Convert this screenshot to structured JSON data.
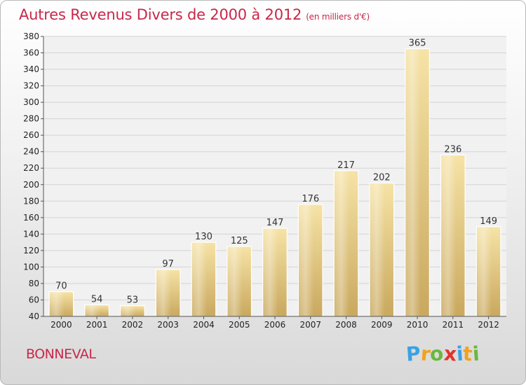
{
  "title": "Autres Revenus Divers de 2000 à 2012",
  "unit": "(en milliers d'€)",
  "place": "BONNEVAL",
  "brand": {
    "letters": [
      "P",
      "r",
      "o",
      "x",
      "i",
      "t",
      "i"
    ],
    "colors": [
      "#3aa3e0",
      "#f2a31b",
      "#6ab83e",
      "#e2322b",
      "#3aa3e0",
      "#f2a31b",
      "#6ab83e"
    ]
  },
  "chart_data": {
    "type": "bar",
    "categories": [
      "2000",
      "2001",
      "2002",
      "2003",
      "2004",
      "2005",
      "2006",
      "2007",
      "2008",
      "2009",
      "2010",
      "2011",
      "2012"
    ],
    "values": [
      70,
      54,
      53,
      97,
      130,
      125,
      147,
      176,
      217,
      202,
      365,
      236,
      149
    ],
    "ylim": [
      40,
      380
    ],
    "yticks": [
      40,
      60,
      80,
      100,
      120,
      140,
      160,
      180,
      200,
      220,
      240,
      260,
      280,
      300,
      320,
      340,
      360,
      380
    ],
    "grid": true,
    "bar_color": "#e8cc82"
  }
}
